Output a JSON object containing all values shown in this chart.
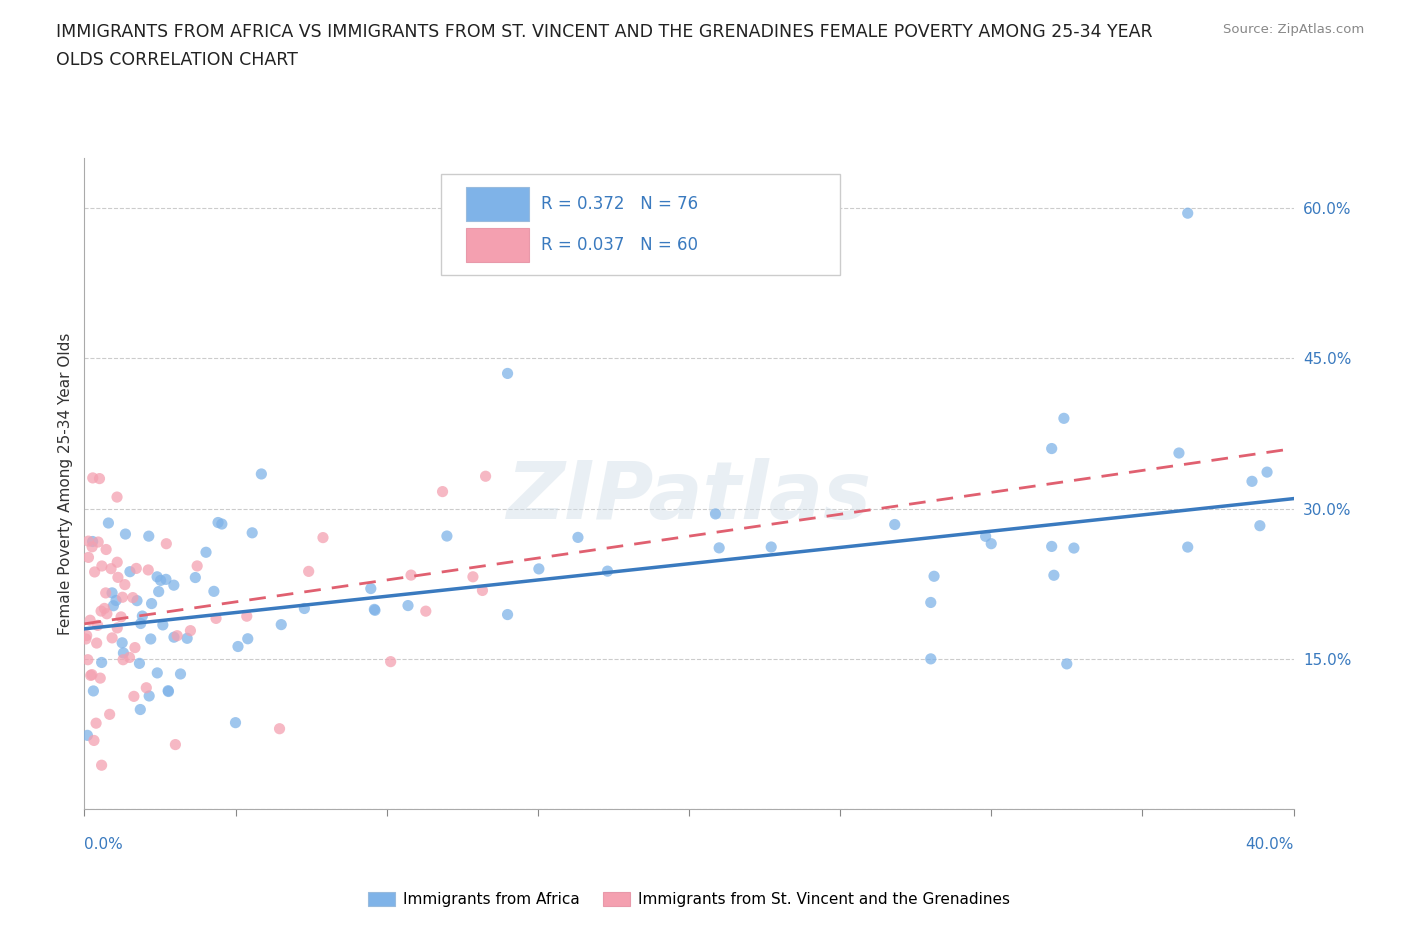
{
  "title_line1": "IMMIGRANTS FROM AFRICA VS IMMIGRANTS FROM ST. VINCENT AND THE GRENADINES FEMALE POVERTY AMONG 25-34 YEAR",
  "title_line2": "OLDS CORRELATION CHART",
  "source": "Source: ZipAtlas.com",
  "ylabel": "Female Poverty Among 25-34 Year Olds",
  "ytick_vals": [
    0.0,
    15.0,
    30.0,
    45.0,
    60.0
  ],
  "ytick_labels": [
    "",
    "15.0%",
    "30.0%",
    "45.0%",
    "60.0%"
  ],
  "xlim": [
    0.0,
    40.0
  ],
  "ylim": [
    0.0,
    65.0
  ],
  "color_africa": "#7fb3e8",
  "color_svg": "#f4a0b0",
  "color_africa_line": "#3a7abf",
  "color_svg_line": "#e06070",
  "watermark": "ZIPatlas",
  "africa_line_start_y": 18.0,
  "africa_line_end_y": 31.0,
  "svg_line_start_y": 18.5,
  "svg_line_end_y": 36.0
}
